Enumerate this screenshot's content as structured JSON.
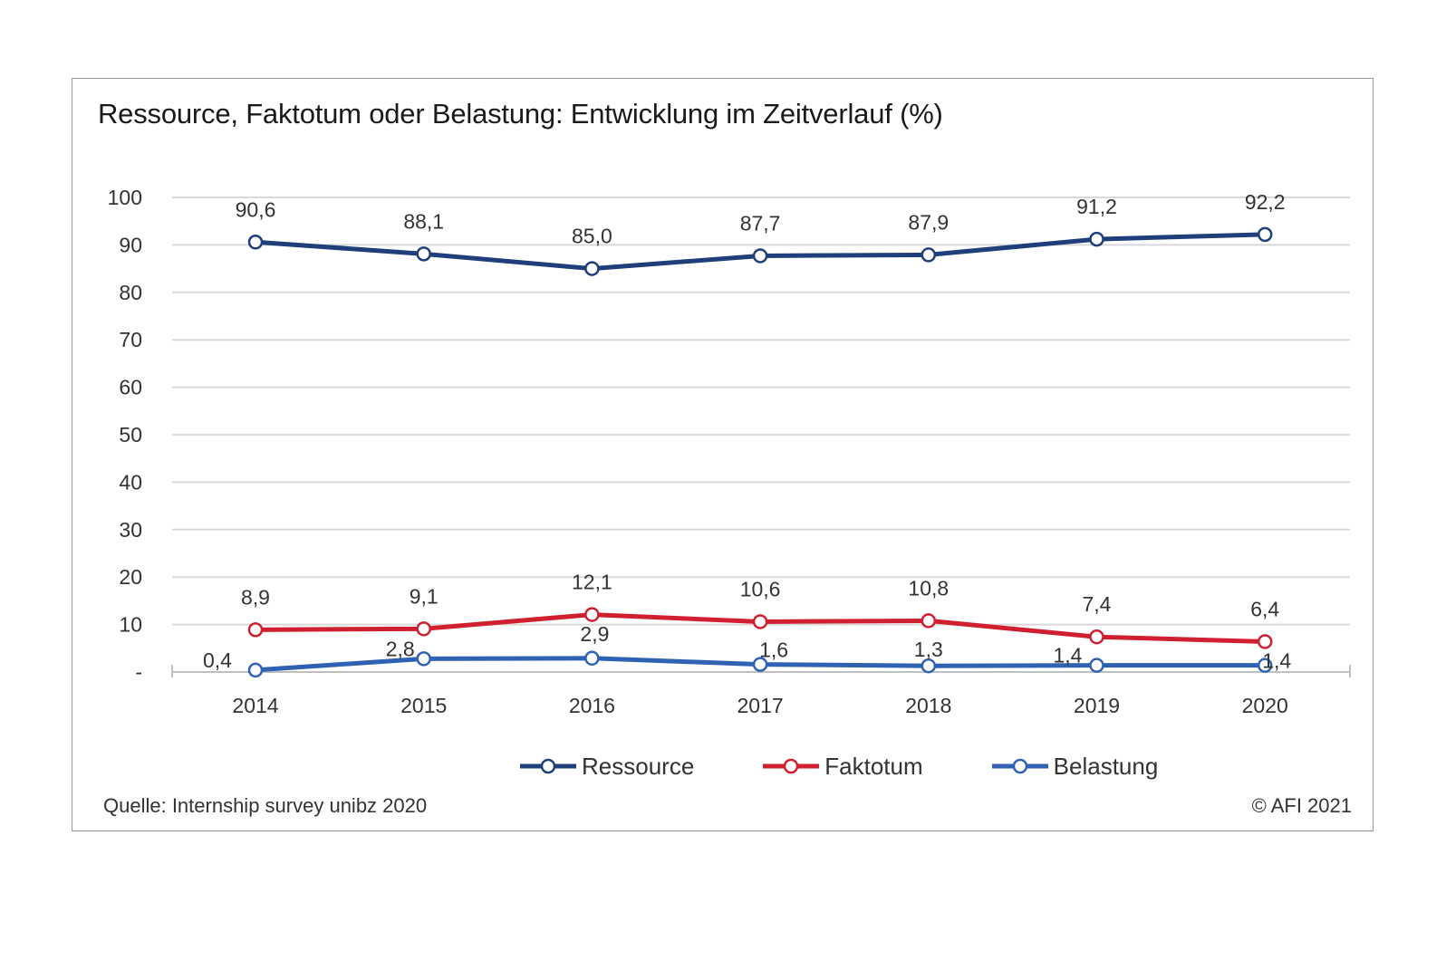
{
  "title": "Ressource, Faktotum oder Belastung: Entwicklung im Zeitverlauf (%)",
  "source": "Quelle: Internship survey unibz 2020",
  "copyright": "© AFI 2021",
  "chart_data": {
    "type": "line",
    "title": "Ressource, Faktotum oder Belastung: Entwicklung im Zeitverlauf (%)",
    "x": [
      "2014",
      "2015",
      "2016",
      "2017",
      "2018",
      "2019",
      "2020"
    ],
    "ylim": [
      0,
      100
    ],
    "yticks": [
      "-",
      "10",
      "20",
      "30",
      "40",
      "50",
      "60",
      "70",
      "80",
      "90",
      "100"
    ],
    "grid": true,
    "legend_position": "bottom",
    "series": [
      {
        "name": "Ressource",
        "color": "#1f3f7a",
        "values": [
          90.6,
          88.1,
          85.0,
          87.7,
          87.9,
          91.2,
          92.2
        ],
        "labels": [
          "90,6",
          "88,1",
          "85,0",
          "87,7",
          "87,9",
          "91,2",
          "92,2"
        ]
      },
      {
        "name": "Faktotum",
        "color": "#d0202f",
        "values": [
          8.9,
          9.1,
          12.1,
          10.6,
          10.8,
          7.4,
          6.4
        ],
        "labels": [
          "8,9",
          "9,1",
          "12,1",
          "10,6",
          "10,8",
          "7,4",
          "6,4"
        ]
      },
      {
        "name": "Belastung",
        "color": "#2f62b3",
        "values": [
          0.4,
          2.8,
          2.9,
          1.6,
          1.3,
          1.4,
          1.4
        ],
        "labels": [
          "0,4",
          "2,8",
          "2,9",
          "1,6",
          "1,3",
          "1,4",
          "1,4"
        ]
      }
    ]
  }
}
